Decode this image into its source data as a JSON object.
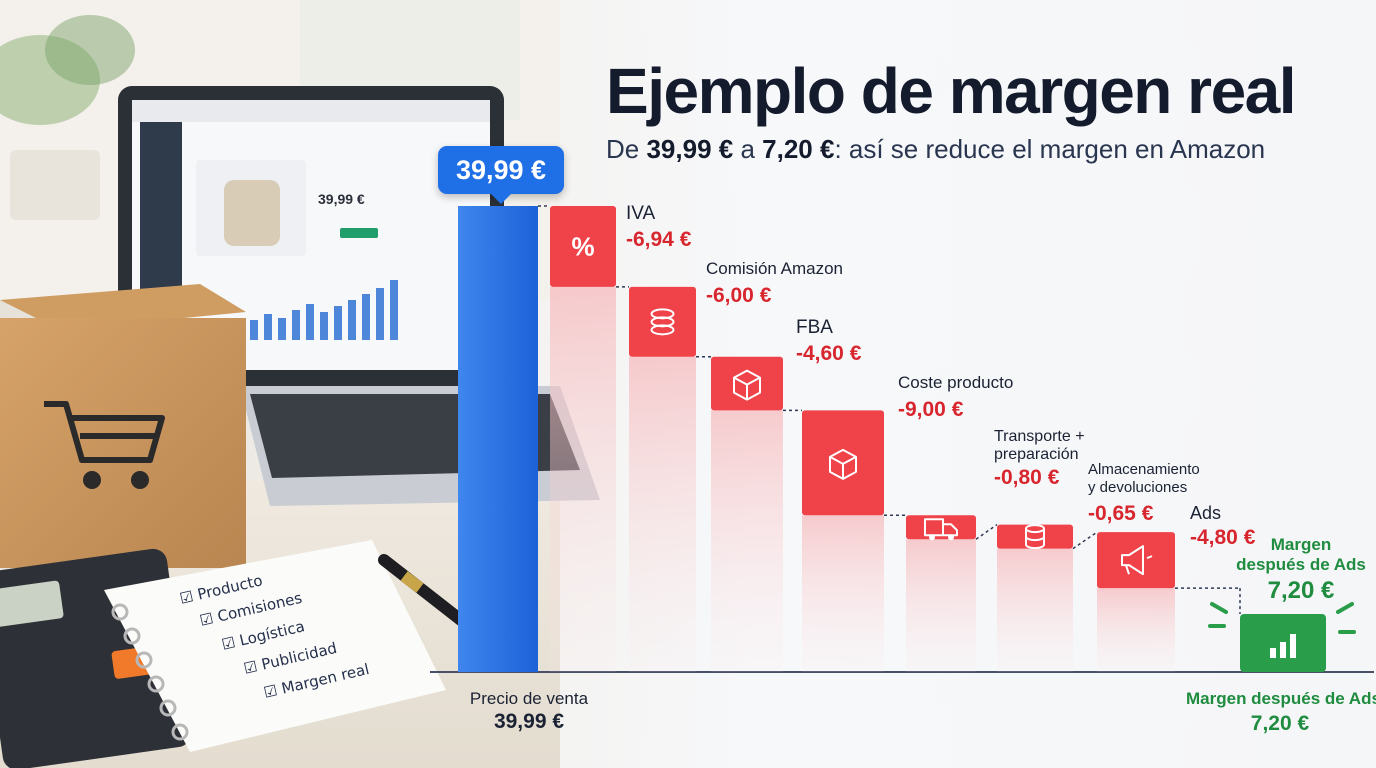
{
  "title": "Ejemplo de margen real",
  "subtitle": {
    "prefix": "De ",
    "start_value": "39,99 €",
    "mid": " a ",
    "end_value": "7,20 €",
    "suffix": ": así se reduce el margen en Amazon"
  },
  "colors": {
    "start": "#1f6fe6",
    "cost": "#ef4249",
    "margin": "#2a9d4b",
    "title": "#141b2d"
  },
  "laptop_screen": {
    "price": "39,99 €"
  },
  "notepad": {
    "items": [
      {
        "icon": "checkbox-icon",
        "text": "Producto"
      },
      {
        "icon": "checkbox-icon",
        "text": "Comisiones"
      },
      {
        "icon": "checkbox-icon",
        "text": "Logística"
      },
      {
        "icon": "checkbox-icon",
        "text": "Publicidad"
      },
      {
        "icon": "checkbox-icon",
        "text": "Margen real"
      }
    ]
  },
  "chart_data": {
    "type": "bar",
    "subtype": "waterfall",
    "start": {
      "value": 39.99,
      "bubble_label": "39,99 €",
      "footer_label": "Precio de venta",
      "footer_value": "39,99 €"
    },
    "steps": [
      {
        "name": "IVA",
        "value": -6.94,
        "label": "-6,94 €",
        "icon": "percent-icon"
      },
      {
        "name": "Comisión Amazon",
        "value": -6.0,
        "label": "-6,00 €",
        "icon": "coins-icon"
      },
      {
        "name": "FBA",
        "value": -4.6,
        "label": "-4,60 €",
        "icon": "box-icon"
      },
      {
        "name": "Coste producto",
        "value": -9.0,
        "label": "-9,00 €",
        "icon": "box-icon"
      },
      {
        "name": "Transporte + preparación",
        "name_lines": [
          "Transporte +",
          "preparación"
        ],
        "value": -0.8,
        "label": "-0,80 €",
        "icon": "truck-icon"
      },
      {
        "name": "Almacenamiento y devoluciones",
        "name_lines": [
          "Almacenamiento",
          "y devoluciones"
        ],
        "value": -0.65,
        "label": "-0,65 €",
        "icon": "database-icon"
      },
      {
        "name": "Ads",
        "value": -4.8,
        "label": "-4,80 €",
        "icon": "megaphone-icon"
      }
    ],
    "end": {
      "value": 7.2,
      "label_lines": [
        "Margen",
        "después de Ads"
      ],
      "value_label": "7,20 €",
      "footer_label": "Margen después de Ads",
      "footer_value": "7,20 €",
      "icon": "bar-chart-icon"
    },
    "xlabel": "",
    "ylabel": "",
    "grid": false,
    "legend": "none"
  }
}
